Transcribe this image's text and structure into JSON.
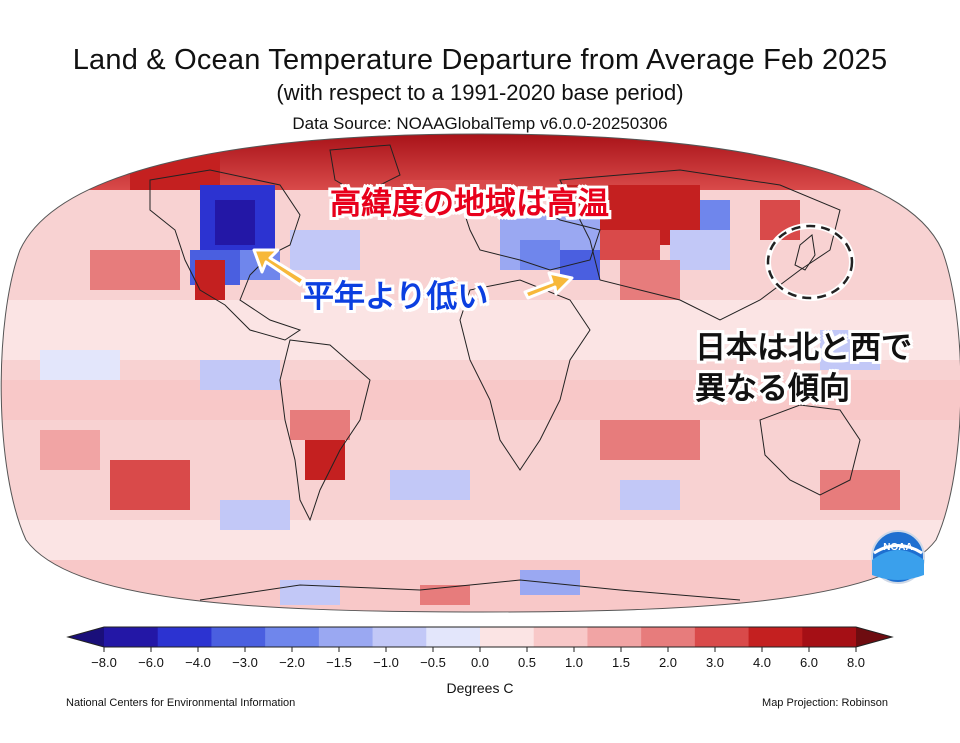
{
  "header": {
    "title": "Land & Ocean Temperature Departure from Average Feb 2025",
    "subtitle": "(with respect to a 1991-2020 base period)",
    "data_source": "Data Source: NOAAGlobalTemp v6.0.0-20250306"
  },
  "annotations": {
    "high_latitudes": "高緯度の地域は高温",
    "below_normal": "平年より低い",
    "japan_line1": "日本は北と西で",
    "japan_line2": "異なる傾向"
  },
  "legend": {
    "label": "Degrees C",
    "ticks": [
      "−8.0",
      "−6.0",
      "−4.0",
      "−3.0",
      "−2.0",
      "−1.5",
      "−1.0",
      "−0.5",
      "0.0",
      "0.5",
      "1.0",
      "1.5",
      "2.0",
      "3.0",
      "4.0",
      "6.0",
      "8.0"
    ],
    "colors": [
      "#2317a6",
      "#2c33d1",
      "#4a5fe0",
      "#6f86ec",
      "#9aa8f2",
      "#c2c8f7",
      "#e3e6fb",
      "#fbe4e4",
      "#f8c8c8",
      "#f1a4a4",
      "#e77c7c",
      "#d94a4a",
      "#c42020",
      "#a50f15"
    ],
    "arrow_left_color": "#1a0f7a",
    "arrow_right_color": "#6e0c10"
  },
  "footer": {
    "left": "National Centers for Environmental Information",
    "right": "Map Projection: Robinson"
  },
  "logo": {
    "text": "NOAA"
  },
  "colors": {
    "warm_strong": "#b3141d",
    "warm": "#e36666",
    "warm_light": "#f7c7c7",
    "cool": "#6b7fe8",
    "cool_strong": "#2a2fc8",
    "neutral": "#fdeaea"
  }
}
